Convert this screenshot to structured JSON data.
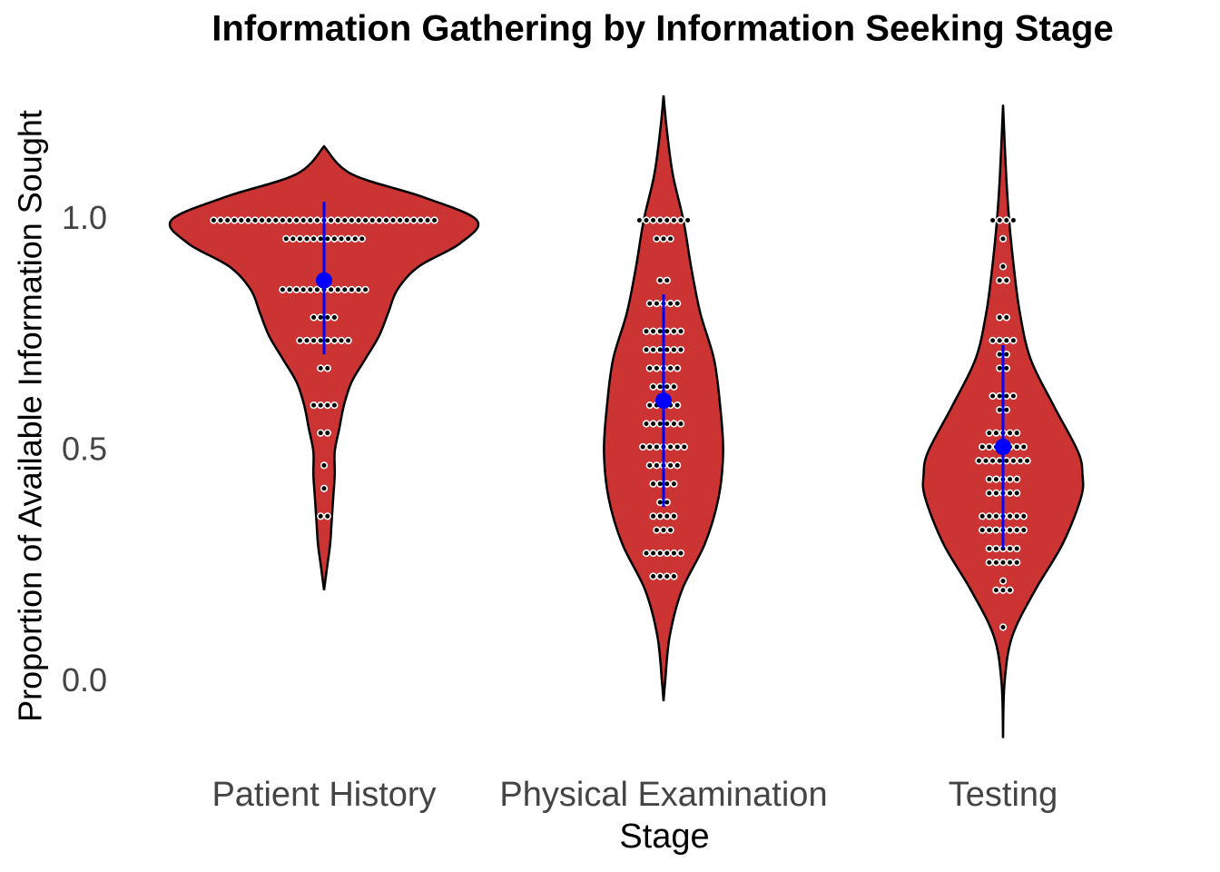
{
  "chart_data": {
    "type": "violin",
    "title": "Information Gathering by Information Seeking Stage",
    "x_label": "Stage",
    "y_label": "Proportion of Available Information Sought",
    "categories": [
      "Patient History",
      "Physical Examination",
      "Testing"
    ],
    "ylim": [
      -0.16,
      1.28
    ],
    "yticks": [
      {
        "value": 0,
        "label": "0.0"
      },
      {
        "value": 0.5,
        "label": "0.5"
      },
      {
        "value": 1,
        "label": "1.0"
      }
    ],
    "color": "#cc3333",
    "mean_color": "#0000ff",
    "groups": [
      {
        "violin": {
          "y": [
            0.2,
            0.25,
            0.3,
            0.35,
            0.4,
            0.45,
            0.5,
            0.55,
            0.6,
            0.65,
            0.7,
            0.75,
            0.8,
            0.85,
            0.9,
            0.95,
            1.0,
            1.05,
            1.1,
            1.16
          ],
          "density": [
            0,
            0.02,
            0.04,
            0.05,
            0.06,
            0.07,
            0.07,
            0.1,
            0.13,
            0.18,
            0.27,
            0.36,
            0.42,
            0.48,
            0.62,
            0.89,
            1.0,
            0.65,
            0.18,
            0
          ]
        },
        "dots": {
          "values": [
            1.0,
            0.96,
            0.85,
            0.79,
            0.74,
            0.68,
            0.6,
            0.54,
            0.47,
            0.42,
            0.36
          ],
          "counts": [
            33,
            12,
            13,
            4,
            8,
            2,
            4,
            2,
            1,
            1,
            2
          ]
        },
        "mean": 0.87,
        "lower": 0.71,
        "upper": 1.04
      },
      {
        "violin": {
          "y": [
            -0.04,
            0.0,
            0.1,
            0.2,
            0.3,
            0.4,
            0.5,
            0.6,
            0.7,
            0.8,
            0.9,
            1.0,
            1.1,
            1.2,
            1.27
          ],
          "density": [
            0,
            0.01,
            0.04,
            0.12,
            0.27,
            0.36,
            0.39,
            0.37,
            0.33,
            0.24,
            0.18,
            0.13,
            0.06,
            0.02,
            0
          ]
        },
        "dots": {
          "values": [
            1.0,
            0.96,
            0.87,
            0.82,
            0.76,
            0.72,
            0.68,
            0.64,
            0.6,
            0.56,
            0.51,
            0.47,
            0.43,
            0.39,
            0.36,
            0.33,
            0.28,
            0.23
          ],
          "counts": [
            8,
            3,
            2,
            5,
            6,
            6,
            5,
            4,
            5,
            6,
            7,
            5,
            4,
            2,
            4,
            3,
            6,
            4
          ]
        },
        "mean": 0.61,
        "lower": 0.38,
        "upper": 0.84
      },
      {
        "violin": {
          "y": [
            -0.12,
            0.0,
            0.1,
            0.2,
            0.3,
            0.4,
            0.45,
            0.5,
            0.6,
            0.7,
            0.8,
            0.9,
            1.0,
            1.1,
            1.25
          ],
          "density": [
            0,
            0.01,
            0.06,
            0.21,
            0.39,
            0.51,
            0.52,
            0.49,
            0.33,
            0.18,
            0.11,
            0.07,
            0.04,
            0.02,
            0
          ]
        },
        "dots": {
          "values": [
            1.0,
            0.96,
            0.9,
            0.87,
            0.79,
            0.74,
            0.71,
            0.68,
            0.62,
            0.59,
            0.54,
            0.51,
            0.48,
            0.44,
            0.41,
            0.36,
            0.33,
            0.29,
            0.26,
            0.22,
            0.2,
            0.12
          ],
          "counts": [
            4,
            1,
            1,
            2,
            2,
            4,
            2,
            2,
            4,
            2,
            5,
            7,
            8,
            5,
            5,
            7,
            7,
            5,
            5,
            1,
            3,
            1
          ]
        },
        "mean": 0.51,
        "lower": 0.29,
        "upper": 0.73
      }
    ]
  }
}
